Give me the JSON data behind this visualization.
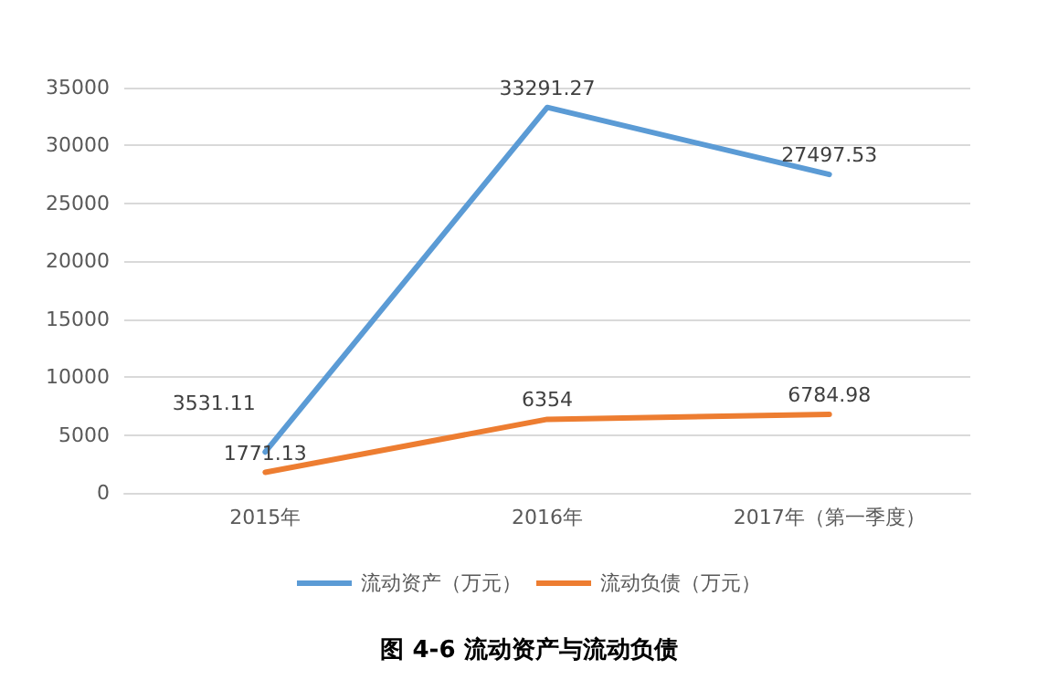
{
  "chart_data": {
    "type": "line",
    "title": "图 4-6 流动资产与流动负债",
    "categories": [
      "2015年",
      "2016年",
      "2017年（第一季度）"
    ],
    "series": [
      {
        "name": "流动资产（万元）",
        "color": "#5b9bd5",
        "values": [
          3531.11,
          33291.27,
          27497.53
        ]
      },
      {
        "name": "流动负债（万元）",
        "color": "#ed7d31",
        "values": [
          1771.13,
          6354,
          6784.98
        ]
      }
    ],
    "ylim": [
      0,
      35000
    ],
    "yticks": [
      0,
      5000,
      10000,
      15000,
      20000,
      25000,
      30000,
      35000
    ],
    "grid": "y",
    "legend": "bottom",
    "marker": "none",
    "line_style": "solid",
    "data_labels": true
  }
}
